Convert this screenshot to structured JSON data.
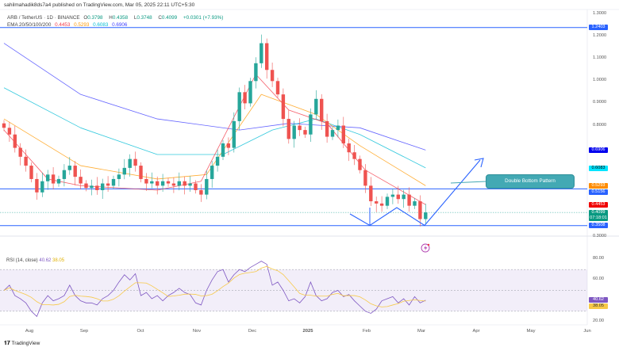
{
  "header": {
    "published": "sahilmahadik8ds7a4 published on TradingView.com, Mar 05, 2025 22:11 UTC+5:30",
    "symbol": "ARB / TetherUS · 1D · BINANCE",
    "o_label": "O",
    "o": "0.3798",
    "h_label": "H",
    "h": "0.4358",
    "l_label": "L",
    "l": "0.3748",
    "c_label": "C",
    "c": "0.4099",
    "change": "+0.0301 (+7.93%)",
    "ema_label": "EMA 20/50/100/200",
    "ema20": "0.4453",
    "ema50": "0.5293",
    "ema100": "0.6083",
    "ema200": "0.6906"
  },
  "colors": {
    "up": "#26a69a",
    "down": "#ef5350",
    "ema20": "#f23645",
    "ema50": "#ff9800",
    "ema100": "#00bcd4",
    "ema200": "#3f3fff",
    "level": "#2962ff",
    "rsi": "#7e57c2",
    "rsima": "#f7c948",
    "callout": "#43a9b4"
  },
  "price_axis": {
    "ticks": [
      "1.3000",
      "1.2000",
      "1.1000",
      "1.0000",
      "0.9000",
      "0.8000",
      "0.3000"
    ],
    "tick_values": [
      1.3,
      1.2,
      1.1,
      1.0,
      0.9,
      0.8,
      0.3
    ]
  },
  "price_tags": [
    {
      "label": "1.2403",
      "value": 1.2403,
      "color": "#2962ff"
    },
    {
      "label": "0.6906",
      "value": 0.6906,
      "color": "#0000ee"
    },
    {
      "label": "0.6083",
      "value": 0.6083,
      "color": "#00e5ff",
      "text": "#000"
    },
    {
      "label": "0.5293",
      "value": 0.5293,
      "color": "#ff8c00"
    },
    {
      "label": "0.5156",
      "value": 0.5156,
      "color": "#2962ff"
    },
    {
      "label": "0.4453",
      "value": 0.4453,
      "color": "#f00000"
    },
    {
      "label": "0.4099",
      "value": 0.4099,
      "color": "#089981",
      "sub": "07:18:01"
    },
    {
      "label": "0.3508",
      "value": 0.3508,
      "color": "#2962ff"
    }
  ],
  "annotation": {
    "label": "Double Bottom Pattern"
  },
  "rsi": {
    "label": "RSI (14, close)",
    "value": "40.62",
    "ma": "38.05",
    "ticks": [
      "80.00",
      "60.00",
      "20.00"
    ],
    "tick_values": [
      80,
      60,
      20
    ]
  },
  "months": [
    "Aug",
    "Sep",
    "Oct",
    "Nov",
    "Dec",
    "2025",
    "Feb",
    "Mar",
    "Apr",
    "May",
    "Jun"
  ],
  "brand": "TradingView",
  "chart_data": {
    "type": "candlestick",
    "title": "ARB / TetherUS · 1D · BINANCE",
    "interval_days": 3,
    "ylim": [
      0.3,
      1.3
    ],
    "close": [
      0.79,
      0.76,
      0.7,
      0.66,
      0.62,
      0.56,
      0.5,
      0.55,
      0.58,
      0.54,
      0.56,
      0.6,
      0.62,
      0.57,
      0.54,
      0.52,
      0.53,
      0.51,
      0.54,
      0.53,
      0.56,
      0.58,
      0.61,
      0.65,
      0.62,
      0.56,
      0.54,
      0.55,
      0.53,
      0.55,
      0.54,
      0.53,
      0.55,
      0.53,
      0.54,
      0.51,
      0.49,
      0.56,
      0.62,
      0.66,
      0.72,
      0.7,
      0.82,
      0.95,
      0.9,
      1.0,
      1.08,
      1.17,
      1.05,
      1.0,
      0.94,
      0.83,
      0.74,
      0.8,
      0.78,
      0.76,
      0.85,
      0.92,
      0.82,
      0.75,
      0.78,
      0.8,
      0.72,
      0.68,
      0.65,
      0.6,
      0.53,
      0.46,
      0.45,
      0.44,
      0.48,
      0.49,
      0.47,
      0.49,
      0.44,
      0.46,
      0.38,
      0.41
    ],
    "ema": [
      {
        "name": "EMA 200",
        "points": [
          [
            0,
            1.17
          ],
          [
            14,
            0.94
          ],
          [
            28,
            0.83
          ],
          [
            43,
            0.78
          ],
          [
            52,
            0.81
          ],
          [
            65,
            0.79
          ],
          [
            77,
            0.69
          ]
        ]
      },
      {
        "name": "EMA 100",
        "points": [
          [
            0,
            0.97
          ],
          [
            14,
            0.79
          ],
          [
            28,
            0.67
          ],
          [
            40,
            0.67
          ],
          [
            49,
            0.78
          ],
          [
            57,
            0.83
          ],
          [
            65,
            0.76
          ],
          [
            77,
            0.61
          ]
        ]
      },
      {
        "name": "EMA 50",
        "points": [
          [
            0,
            0.83
          ],
          [
            14,
            0.62
          ],
          [
            28,
            0.56
          ],
          [
            37,
            0.58
          ],
          [
            47,
            0.94
          ],
          [
            57,
            0.85
          ],
          [
            65,
            0.71
          ],
          [
            77,
            0.53
          ]
        ]
      },
      {
        "name": "EMA 20",
        "points": [
          [
            0,
            0.78
          ],
          [
            8,
            0.56
          ],
          [
            14,
            0.53
          ],
          [
            28,
            0.51
          ],
          [
            36,
            0.55
          ],
          [
            46,
            1.03
          ],
          [
            52,
            0.87
          ],
          [
            59,
            0.81
          ],
          [
            66,
            0.6
          ],
          [
            77,
            0.445
          ]
        ]
      }
    ],
    "levels": [
      1.2403,
      0.5156,
      0.3508
    ],
    "rsi": [
      50,
      55,
      45,
      42,
      38,
      30,
      25,
      38,
      45,
      40,
      42,
      45,
      55,
      45,
      40,
      38,
      38,
      36,
      42,
      45,
      50,
      58,
      65,
      60,
      66,
      45,
      48,
      42,
      45,
      40,
      45,
      48,
      52,
      48,
      46,
      38,
      36,
      50,
      60,
      68,
      70,
      58,
      65,
      70,
      68,
      72,
      75,
      78,
      75,
      55,
      58,
      50,
      40,
      42,
      38,
      44,
      58,
      45,
      40,
      42,
      48,
      50,
      44,
      46,
      40,
      35,
      30,
      28,
      32,
      40,
      42,
      44,
      38,
      42,
      36,
      44,
      38,
      40.62
    ],
    "rsi_ylim": [
      15,
      85
    ],
    "rsi_band": [
      30,
      70
    ]
  }
}
